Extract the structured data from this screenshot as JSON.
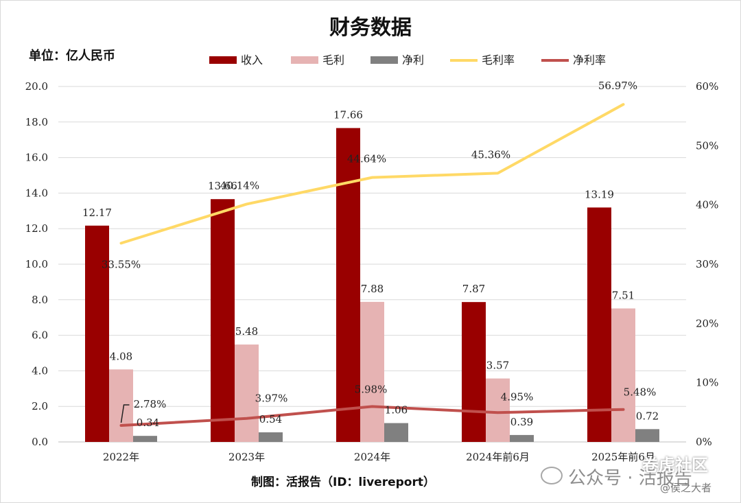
{
  "chart_data": {
    "type": "bar",
    "title": "财务数据",
    "unit_label": "单位：亿人民币",
    "source": "制图：活报告（ID：livereport）",
    "categories": [
      "2022年",
      "2023年",
      "2024年",
      "2024年前6月",
      "2025年前6月"
    ],
    "bar_series": [
      {
        "name": "收入",
        "color": "#990000",
        "values": [
          12.17,
          13.66,
          17.66,
          7.87,
          13.19
        ],
        "labels": [
          "12.17",
          "13.66",
          "17.66",
          "7.87",
          "13.19"
        ]
      },
      {
        "name": "毛利",
        "color": "#e6b3b3",
        "values": [
          4.08,
          5.48,
          7.88,
          3.57,
          7.51
        ],
        "labels": [
          "4.08",
          "5.48",
          "7.88",
          "3.57",
          "7.51"
        ]
      },
      {
        "name": "净利",
        "color": "#808080",
        "values": [
          0.34,
          0.54,
          1.06,
          0.39,
          0.72
        ],
        "labels": [
          "0.34",
          "0.54",
          "1.06",
          "0.39",
          "0.72"
        ]
      }
    ],
    "line_series": [
      {
        "name": "毛利率",
        "color": "#ffd966",
        "axis": "right",
        "values": [
          33.55,
          40.14,
          44.64,
          45.36,
          56.97
        ],
        "labels": [
          "33.55%",
          "40.14%",
          "44.64%",
          "45.36%",
          "56.97%"
        ]
      },
      {
        "name": "净利率",
        "color": "#c0504d",
        "axis": "right",
        "values": [
          2.78,
          3.97,
          5.98,
          4.95,
          5.48
        ],
        "labels": [
          "2.78%",
          "3.97%",
          "5.98%",
          "4.95%",
          "5.48%"
        ]
      }
    ],
    "y_left": {
      "min": 0,
      "max": 20,
      "ticks": [
        "0.0",
        "2.0",
        "4.0",
        "6.0",
        "8.0",
        "10.0",
        "12.0",
        "14.0",
        "16.0",
        "18.0",
        "20.0"
      ]
    },
    "y_right": {
      "min": 0,
      "max": 60,
      "ticks": [
        "0%",
        "10%",
        "20%",
        "30%",
        "40%",
        "50%",
        "60%"
      ]
    },
    "grid": true,
    "legend_position": "top"
  },
  "watermark": {
    "main": "公众号 · 活报告",
    "corner": "卷虎社区",
    "sub": "@侯之大者"
  }
}
